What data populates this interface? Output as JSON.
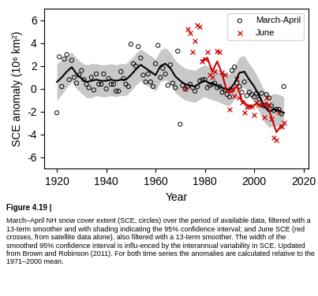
{
  "chart_data": {
    "type": "scatter",
    "xlabel": "Year",
    "ylabel": "SCE anomaly (10⁶ km²)",
    "xlim": [
      1915,
      2022
    ],
    "ylim": [
      -7,
      7
    ],
    "xticks": [
      1920,
      1940,
      1960,
      1980,
      2000,
      2020
    ],
    "yticks": [
      -6,
      -4,
      -2,
      0,
      2,
      4,
      6
    ],
    "legend": "upper right",
    "caption": {
      "bold": "Figure 4.19 |",
      "text": "March–April NH snow cover extent (SCE, circles) over the period of available data, filtered with a 13-term smoother and with shading indicating the 95% confidence interval; and June SCE (red crosses, from satellite data alone), also filtered with a 13-term smoother. The width of the smoothed 95% confidence interval is influ-enced by the interannual variability in SCE. Updated from Brown and Robinson (2011). For both time series the anomalies are calculated relative to the 1971–2000 mean."
    },
    "series": [
      {
        "type": "band",
        "color": "#c8c8c8",
        "x": [
          1920,
          1922,
          1924,
          1926,
          1928,
          1930,
          1932,
          1934,
          1936,
          1938,
          1940,
          1942,
          1944,
          1946,
          1948,
          1950,
          1952,
          1954,
          1956,
          1958,
          1960,
          1962,
          1964,
          1966,
          1968,
          1970,
          1972,
          1974,
          1976,
          1978,
          1980,
          1982,
          1984,
          1986,
          1988,
          1990,
          1992,
          1994,
          1996,
          1998,
          2000,
          2002,
          2004,
          2006,
          2008,
          2010,
          2012
        ],
        "upper": [
          2.2,
          2.5,
          2.9,
          3.2,
          2.7,
          2.3,
          2.1,
          2.2,
          2.2,
          2.1,
          2.1,
          2.2,
          2.1,
          2.2,
          2.2,
          2.6,
          3.1,
          3.5,
          3.2,
          2.9,
          2.6,
          3.4,
          3.6,
          3.2,
          2.5,
          2.1,
          1.8,
          1.7,
          1.6,
          1.9,
          2.1,
          1.9,
          1.8,
          1.6,
          1.4,
          1.3,
          1.9,
          2.8,
          2.9,
          2.2,
          1.6,
          0.8,
          -0.1,
          -0.6,
          -0.4,
          -0.5,
          -0.7
        ],
        "lower": [
          -1.0,
          -0.5,
          0.1,
          0.6,
          0.0,
          -0.4,
          -0.8,
          -0.8,
          -0.6,
          -0.7,
          -0.7,
          -0.6,
          -0.7,
          -0.6,
          -0.6,
          -0.2,
          0.3,
          0.7,
          0.4,
          0.1,
          -0.2,
          0.6,
          0.8,
          0.4,
          -0.3,
          -0.7,
          -1.0,
          -1.1,
          -1.2,
          -0.9,
          -0.7,
          -0.9,
          -1.0,
          -1.2,
          -1.4,
          -1.5,
          -0.9,
          0.0,
          0.1,
          -0.6,
          -1.2,
          -2.0,
          -2.9,
          -3.4,
          -3.2,
          -3.3,
          -3.5
        ]
      },
      {
        "name": "March-April",
        "type": "scatter",
        "marker": "o",
        "color": "#000000",
        "x": [
          1920,
          1921,
          1922,
          1923,
          1924,
          1925,
          1926,
          1927,
          1928,
          1929,
          1930,
          1931,
          1932,
          1933,
          1934,
          1935,
          1936,
          1937,
          1938,
          1939,
          1940,
          1941,
          1942,
          1943,
          1944,
          1945,
          1946,
          1947,
          1948,
          1949,
          1950,
          1951,
          1952,
          1953,
          1954,
          1955,
          1956,
          1957,
          1958,
          1959,
          1960,
          1961,
          1962,
          1963,
          1964,
          1965,
          1966,
          1967,
          1968,
          1969,
          1970,
          1971,
          1972,
          1973,
          1974,
          1975,
          1976,
          1977,
          1978,
          1979,
          1980,
          1981,
          1982,
          1983,
          1984,
          1985,
          1986,
          1987,
          1988,
          1989,
          1990,
          1991,
          1992,
          1993,
          1994,
          1995,
          1996,
          1997,
          1998,
          1999,
          2000,
          2001,
          2002,
          2003,
          2004,
          2005,
          2006,
          2007,
          2008,
          2009,
          2010,
          2011,
          2012
        ],
        "values": [
          -2.1,
          2.8,
          0.2,
          2.6,
          3.0,
          0.8,
          2.5,
          1.0,
          0.5,
          1.2,
          1.6,
          0.8,
          0.4,
          0.1,
          1.0,
          -0.1,
          1.3,
          0.4,
          0.4,
          1.3,
          0.0,
          0.9,
          0.4,
          0.4,
          -0.2,
          -0.2,
          1.5,
          0.9,
          0.4,
          0.2,
          3.9,
          2.2,
          2.0,
          3.7,
          2.7,
          1.2,
          0.6,
          1.3,
          0.6,
          0.2,
          2.2,
          3.8,
          1.0,
          1.8,
          1.3,
          0.3,
          2.1,
          0.5,
          0.1,
          3.3,
          -3.1,
          0.3,
          0.0,
          0.2,
          0.4,
          0.1,
          -0.2,
          0.2,
          0.7,
          0.8,
          0.8,
          0.1,
          0.3,
          0.4,
          0.5,
          0.1,
          0.2,
          -0.3,
          -0.1,
          -0.5,
          -0.7,
          1.6,
          1.9,
          0.5,
          0.2,
          -0.3,
          0.6,
          -0.6,
          -0.3,
          -0.5,
          -0.7,
          -0.4,
          -0.9,
          -0.4,
          -1.5,
          -0.5,
          -0.8,
          -1.5,
          -1.9,
          -1.8,
          -1.8,
          -2.2,
          0.2
        ]
      },
      {
        "type": "line",
        "line_style": "solid",
        "color": "#000000",
        "x": [
          1920,
          1922,
          1924,
          1926,
          1928,
          1930,
          1932,
          1934,
          1936,
          1938,
          1940,
          1942,
          1944,
          1946,
          1948,
          1950,
          1952,
          1954,
          1956,
          1958,
          1960,
          1962,
          1964,
          1966,
          1968,
          1970,
          1972,
          1974,
          1976,
          1978,
          1980,
          1982,
          1984,
          1986,
          1988,
          1990,
          1992,
          1994,
          1996,
          1998,
          2000,
          2002,
          2004,
          2006,
          2008,
          2010,
          2012
        ],
        "values": [
          0.6,
          1.0,
          1.5,
          1.9,
          1.3,
          0.9,
          0.6,
          0.7,
          0.8,
          0.7,
          0.7,
          0.8,
          0.7,
          0.8,
          0.8,
          1.2,
          1.7,
          2.1,
          1.8,
          1.5,
          1.2,
          2.0,
          2.2,
          1.8,
          1.1,
          0.7,
          0.4,
          0.3,
          0.2,
          0.5,
          0.7,
          0.5,
          0.4,
          0.2,
          0.0,
          -0.1,
          0.5,
          1.4,
          1.5,
          0.8,
          0.2,
          -0.6,
          -1.5,
          -2.0,
          -1.8,
          -1.9,
          -2.1
        ]
      },
      {
        "name": "June",
        "type": "scatter",
        "marker": "x",
        "color": "#cc0000",
        "x": [
          1972,
          1973,
          1974,
          1975,
          1976,
          1977,
          1978,
          1979,
          1980,
          1981,
          1982,
          1983,
          1984,
          1985,
          1986,
          1987,
          1988,
          1989,
          1990,
          1991,
          1992,
          1993,
          1994,
          1995,
          1996,
          1997,
          1998,
          1999,
          2000,
          2001,
          2002,
          2003,
          2004,
          2005,
          2006,
          2007,
          2008,
          2009,
          2010,
          2011,
          2012
        ],
        "values": [
          0.0,
          5.2,
          4.9,
          3.2,
          4.2,
          5.6,
          5.4,
          2.4,
          2.6,
          3.2,
          1.2,
          1.0,
          1.5,
          3.3,
          3.2,
          1.4,
          1.2,
          0.0,
          -1.8,
          0.0,
          -0.6,
          0.9,
          -0.8,
          -1.2,
          -2.1,
          -1.6,
          -1.5,
          -1.5,
          -2.3,
          -1.2,
          -1.4,
          -1.4,
          -2.5,
          -0.8,
          -1.4,
          -2.6,
          -4.3,
          -4.5,
          -2.0,
          -3.3,
          -3.0
        ]
      },
      {
        "type": "line",
        "line_style": "solid",
        "color": "#cc0000",
        "x": [
          1979,
          1981,
          1983,
          1985,
          1987,
          1989,
          1991,
          1993,
          1995,
          1997,
          1999,
          2001,
          2003,
          2005,
          2007,
          2009,
          2011
        ],
        "values": [
          2.5,
          2.7,
          1.5,
          2.4,
          1.3,
          -0.3,
          -0.3,
          0.3,
          -1.0,
          -1.4,
          -1.6,
          -1.3,
          -1.5,
          -1.2,
          -2.5,
          -3.8,
          -3.2
        ]
      }
    ]
  }
}
